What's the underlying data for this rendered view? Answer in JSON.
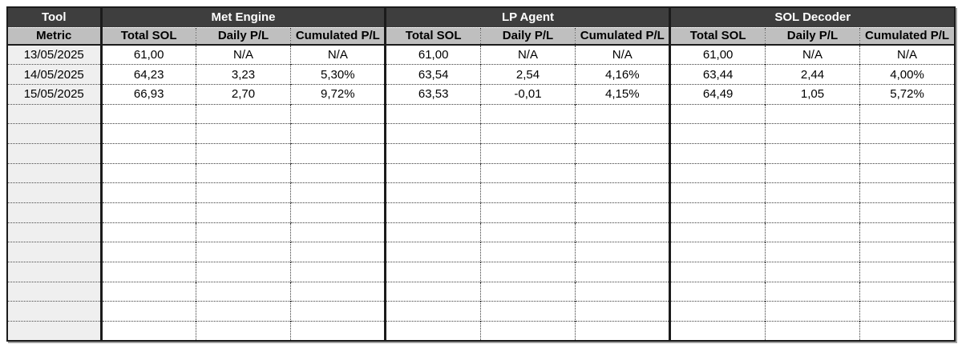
{
  "table": {
    "corner": {
      "tool_label": "Tool",
      "metric_label": "Metric"
    },
    "sections": [
      {
        "name": "Met Engine",
        "columns": [
          "Total SOL",
          "Daily P/L",
          "Cumulated P/L"
        ]
      },
      {
        "name": "LP Agent",
        "columns": [
          "Total SOL",
          "Daily P/L",
          "Cumulated P/L"
        ]
      },
      {
        "name": "SOL Decoder",
        "columns": [
          "Total SOL",
          "Daily P/L",
          "Cumulated P/L"
        ]
      }
    ],
    "rows": [
      {
        "date": "13/05/2025",
        "values": [
          [
            "61,00",
            "N/A",
            "N/A"
          ],
          [
            "61,00",
            "N/A",
            "N/A"
          ],
          [
            "61,00",
            "N/A",
            "N/A"
          ]
        ]
      },
      {
        "date": "14/05/2025",
        "values": [
          [
            "64,23",
            "3,23",
            "5,30%"
          ],
          [
            "63,54",
            "2,54",
            "4,16%"
          ],
          [
            "63,44",
            "2,44",
            "4,00%"
          ]
        ]
      },
      {
        "date": "15/05/2025",
        "values": [
          [
            "66,93",
            "2,70",
            "9,72%"
          ],
          [
            "63,53",
            "-0,01",
            "4,15%"
          ],
          [
            "64,49",
            "1,05",
            "5,72%"
          ]
        ]
      }
    ],
    "empty_row_count": 12,
    "colors": {
      "header_bg": "#3e3e3e",
      "header_text": "#ffffff",
      "metric_bg": "#bfbfbf",
      "rowhead_bg": "#efefef",
      "cell_bg": "#ffffff",
      "grid_dotted": "#3c3c3c",
      "border_thick": "#1b1b1b",
      "shadow": "#a0a0a0"
    }
  }
}
